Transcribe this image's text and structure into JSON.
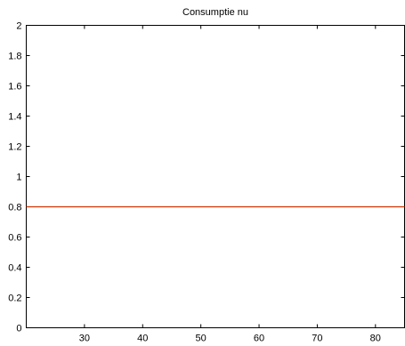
{
  "chart_data": {
    "type": "line",
    "title": "Consumptie nu",
    "xlabel": "",
    "ylabel": "",
    "xlim": [
      20,
      85
    ],
    "ylim": [
      0,
      2
    ],
    "xticks": [
      30,
      40,
      50,
      60,
      70,
      80
    ],
    "yticks": [
      0,
      0.2,
      0.4,
      0.6,
      0.8,
      1,
      1.2,
      1.4,
      1.6,
      1.8,
      2
    ],
    "ytick_labels": [
      "0",
      "0.2",
      "0.4",
      "0.6",
      "0.8",
      "1",
      "1.2",
      "1.4",
      "1.6",
      "1.8",
      "2"
    ],
    "grid": false,
    "series": [
      {
        "color": "#cc3300",
        "x": [
          20,
          85
        ],
        "y": [
          0.8,
          0.8
        ]
      }
    ]
  }
}
